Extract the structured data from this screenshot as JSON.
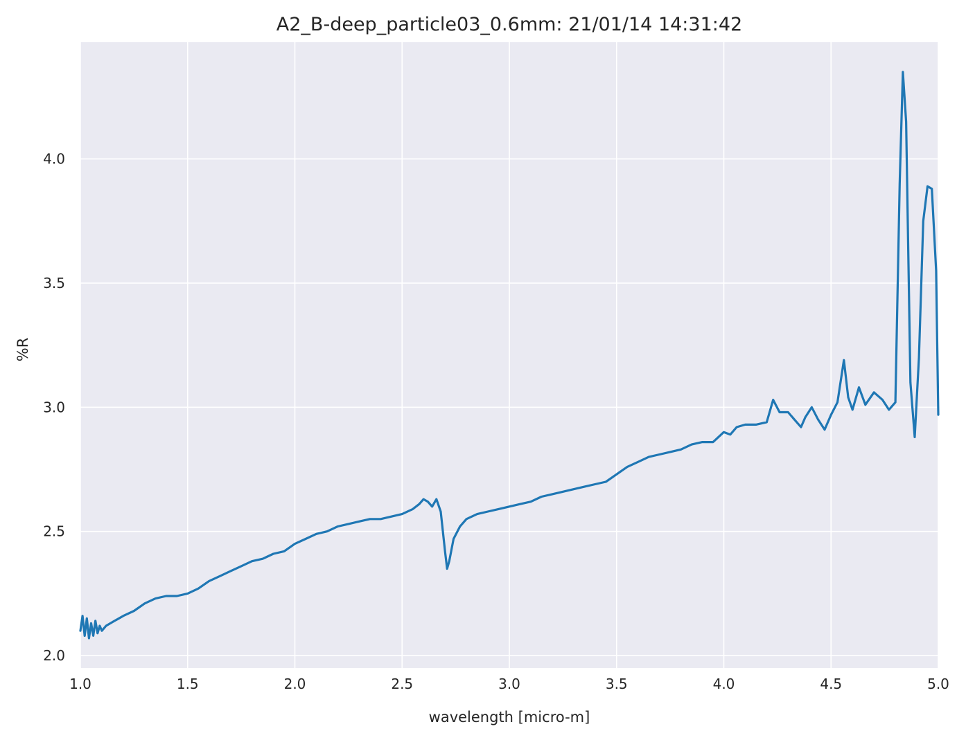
{
  "chart_data": {
    "type": "line",
    "title": "A2_B-deep_particle03_0.6mm:  21/01/14 14:31:42",
    "xlabel": "wavelength [micro-m]",
    "ylabel": "%R",
    "xlim": [
      1.0,
      5.0
    ],
    "ylim": [
      1.95,
      4.47
    ],
    "xticks": [
      1.0,
      1.5,
      2.0,
      2.5,
      3.0,
      3.5,
      4.0,
      4.5,
      5.0
    ],
    "xtick_labels": [
      "1.0",
      "1.5",
      "2.0",
      "2.5",
      "3.0",
      "3.5",
      "4.0",
      "4.5",
      "5.0"
    ],
    "yticks": [
      2.0,
      2.5,
      3.0,
      3.5,
      4.0
    ],
    "ytick_labels": [
      "2.0",
      "2.5",
      "3.0",
      "3.5",
      "4.0"
    ],
    "grid": true,
    "colors": {
      "background": "#eaeaf2",
      "grid": "#ffffff",
      "line": "#1f77b4"
    },
    "series": [
      {
        "x": [
          1.0,
          1.01,
          1.02,
          1.03,
          1.04,
          1.05,
          1.06,
          1.07,
          1.08,
          1.09,
          1.1,
          1.12,
          1.14,
          1.16,
          1.18,
          1.2,
          1.25,
          1.3,
          1.35,
          1.4,
          1.45,
          1.5,
          1.55,
          1.6,
          1.65,
          1.7,
          1.75,
          1.8,
          1.85,
          1.9,
          1.95,
          2.0,
          2.05,
          2.1,
          2.15,
          2.2,
          2.25,
          2.3,
          2.35,
          2.4,
          2.45,
          2.5,
          2.55,
          2.58,
          2.6,
          2.62,
          2.64,
          2.66,
          2.68,
          2.7,
          2.71,
          2.72,
          2.74,
          2.77,
          2.8,
          2.85,
          2.9,
          2.95,
          3.0,
          3.05,
          3.1,
          3.15,
          3.2,
          3.25,
          3.3,
          3.35,
          3.4,
          3.45,
          3.5,
          3.55,
          3.6,
          3.65,
          3.7,
          3.75,
          3.8,
          3.85,
          3.9,
          3.95,
          4.0,
          4.03,
          4.06,
          4.1,
          4.15,
          4.2,
          4.23,
          4.26,
          4.3,
          4.33,
          4.36,
          4.38,
          4.41,
          4.44,
          4.47,
          4.5,
          4.53,
          4.56,
          4.58,
          4.6,
          4.63,
          4.66,
          4.7,
          4.74,
          4.77,
          4.8,
          4.82,
          4.835,
          4.85,
          4.87,
          4.89,
          4.91,
          4.93,
          4.95,
          4.97,
          4.99,
          5.0
        ],
        "y": [
          2.1,
          2.16,
          2.08,
          2.15,
          2.07,
          2.13,
          2.08,
          2.14,
          2.09,
          2.12,
          2.1,
          2.12,
          2.13,
          2.14,
          2.15,
          2.16,
          2.18,
          2.21,
          2.23,
          2.24,
          2.24,
          2.25,
          2.27,
          2.3,
          2.32,
          2.34,
          2.36,
          2.38,
          2.39,
          2.41,
          2.42,
          2.45,
          2.47,
          2.49,
          2.5,
          2.52,
          2.53,
          2.54,
          2.55,
          2.55,
          2.56,
          2.57,
          2.59,
          2.61,
          2.63,
          2.62,
          2.6,
          2.63,
          2.58,
          2.42,
          2.35,
          2.38,
          2.47,
          2.52,
          2.55,
          2.57,
          2.58,
          2.59,
          2.6,
          2.61,
          2.62,
          2.64,
          2.65,
          2.66,
          2.67,
          2.68,
          2.69,
          2.7,
          2.73,
          2.76,
          2.78,
          2.8,
          2.81,
          2.82,
          2.83,
          2.85,
          2.86,
          2.86,
          2.9,
          2.89,
          2.92,
          2.93,
          2.93,
          2.94,
          3.03,
          2.98,
          2.98,
          2.95,
          2.92,
          2.96,
          3.0,
          2.95,
          2.91,
          2.97,
          3.02,
          3.19,
          3.04,
          2.99,
          3.08,
          3.01,
          3.06,
          3.03,
          2.99,
          3.02,
          3.9,
          4.35,
          4.15,
          3.1,
          2.88,
          3.2,
          3.75,
          3.89,
          3.88,
          3.55,
          2.97
        ]
      }
    ]
  }
}
